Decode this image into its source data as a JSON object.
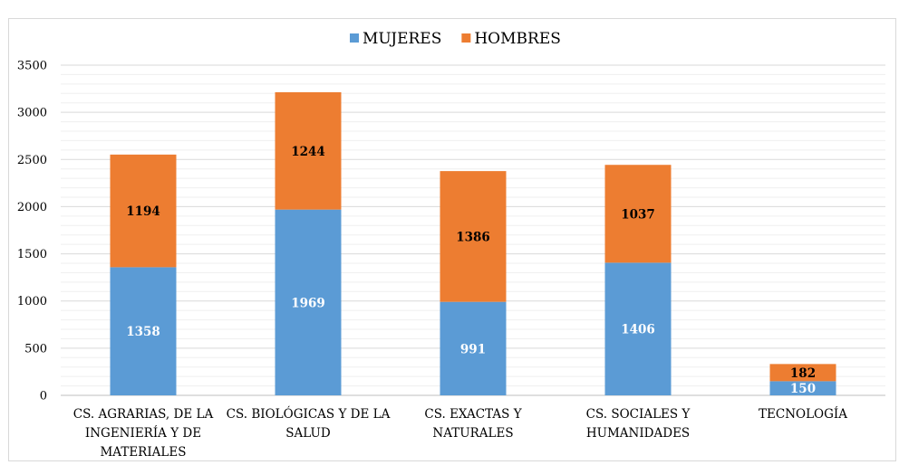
{
  "chart_data": {
    "type": "bar",
    "stacked": true,
    "categories": [
      [
        "CS. AGRARIAS, DE LA",
        "INGENIERÍA Y DE",
        "MATERIALES"
      ],
      [
        "CS. BIOLÓGICAS Y DE LA",
        "SALUD"
      ],
      [
        "CS. EXACTAS Y",
        "NATURALES"
      ],
      [
        "CS. SOCIALES Y",
        "HUMANIDADES"
      ],
      [
        "TECNOLOGÍA"
      ]
    ],
    "series": [
      {
        "name": "MUJERES",
        "color": "#5b9bd5",
        "values": [
          1358,
          1969,
          991,
          1406,
          150
        ]
      },
      {
        "name": "HOMBRES",
        "color": "#ed7d31",
        "values": [
          1194,
          1244,
          1386,
          1037,
          182
        ]
      }
    ],
    "ylim": [
      0,
      3500
    ],
    "yticks": [
      0,
      500,
      1000,
      1500,
      2000,
      2500,
      3000,
      3500
    ],
    "grid": true,
    "legend_position": "top-center",
    "title": "",
    "xlabel": "",
    "ylabel": ""
  }
}
